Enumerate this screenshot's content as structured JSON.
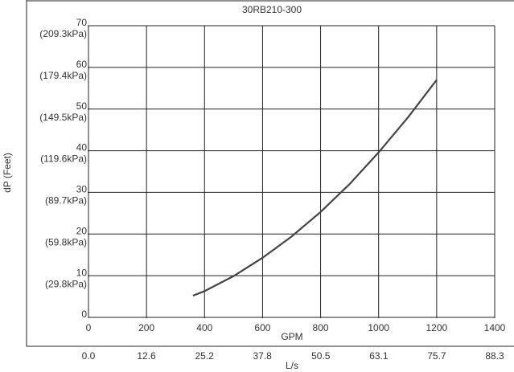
{
  "chart_data": {
    "type": "line",
    "title": "30RB210-300",
    "x_label": "GPM",
    "x2_label": "L/s",
    "y_label": "dP (Feet)",
    "x": [
      360,
      400,
      500,
      600,
      700,
      800,
      900,
      1000,
      1100,
      1200
    ],
    "series": [
      {
        "color": "#444444",
        "values": [
          5.2,
          6.3,
          9.9,
          14.3,
          19.4,
          25.3,
          32.0,
          39.6,
          47.9,
          57.0
        ]
      }
    ],
    "xlim": [
      0,
      1400
    ],
    "xticks": [
      0,
      200,
      400,
      600,
      800,
      1000,
      1200,
      1400
    ],
    "x2lim": [
      0,
      88.3
    ],
    "x2ticks": [
      {
        "value": 0,
        "label": "0.0"
      },
      12.6,
      25.2,
      37.8,
      50.5,
      63.1,
      75.7,
      88.3
    ],
    "ylim": [
      0,
      70
    ],
    "yticks": [
      0,
      10,
      20,
      30,
      40,
      50,
      60,
      70
    ],
    "y2lim": [
      0,
      209.3
    ],
    "y2ticks": [
      {
        "value": 29.8,
        "label": "(29.8kPa)"
      },
      {
        "value": 59.8,
        "label": "(59.8kPa)"
      },
      {
        "value": 89.7,
        "label": "(89.7kPa)"
      },
      {
        "value": 119.6,
        "label": "(119.6kPa)"
      },
      {
        "value": 149.5,
        "label": "(149.5kPa)"
      },
      {
        "value": 179.4,
        "label": "(179.4kPa)"
      },
      {
        "value": 209.3,
        "label": "(209.3kPa)"
      }
    ],
    "grid": true
  }
}
